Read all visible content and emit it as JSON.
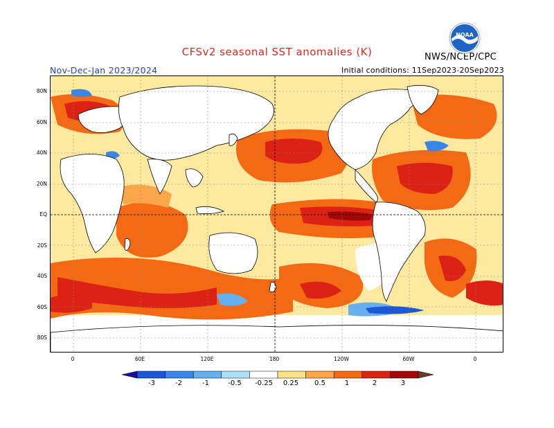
{
  "header": {
    "title": "CFSv2 seasonal SST anomalies (K)",
    "season": "Nov-Dec-Jan 2023/2024",
    "initial_conditions": "Initial conditions: 11Sep2023-20Sep2023",
    "agency": "NWS/NCEP/CPC",
    "logo_text": "NOAA"
  },
  "map": {
    "lat_labels": [
      "80N",
      "60N",
      "40N",
      "20N",
      "EQ",
      "20S",
      "40S",
      "60S",
      "80S"
    ],
    "lon_labels": [
      "0",
      "60E",
      "120E",
      "180",
      "120W",
      "60W",
      "0"
    ],
    "grid": true,
    "reference_lines": [
      "equator",
      "dateline"
    ]
  },
  "legend": {
    "labels": [
      "-3",
      "-2",
      "-1",
      "-0.5",
      "-0.25",
      "0.25",
      "0.5",
      "1",
      "2",
      "3"
    ],
    "colors": [
      "#1d0ea0",
      "#1c58d6",
      "#3a86e8",
      "#67b0f0",
      "#aee0f8",
      "#ffffff",
      "#fde28a",
      "#fca64a",
      "#f46a14",
      "#dc2214",
      "#a20808",
      "#6e3a30"
    ]
  },
  "colors": {
    "title": "#e0281e",
    "season": "#2a3fd0",
    "land": "#ffffff"
  }
}
